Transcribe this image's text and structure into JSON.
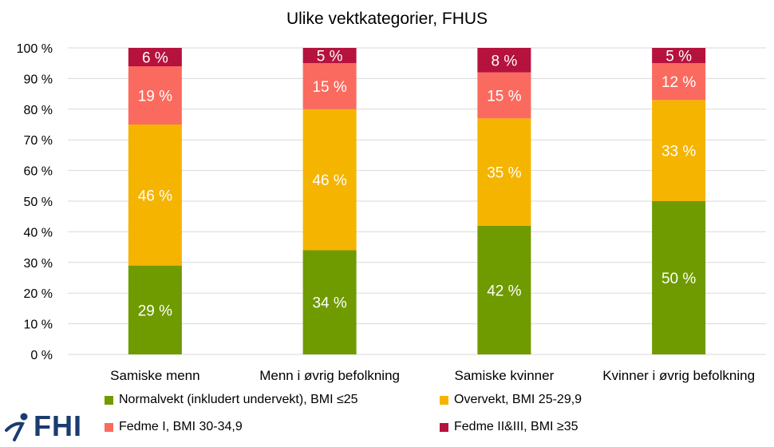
{
  "chart_data": {
    "type": "bar",
    "stacked": true,
    "title": "Ulike vektkategorier, FHUS",
    "categories": [
      "Samiske menn",
      "Menn i øvrig befolkning",
      "Samiske kvinner",
      "Kvinner i øvrig befolkning"
    ],
    "series": [
      {
        "name": "Normalvekt (inkludert undervekt), BMI ≤25",
        "color": "#6f9a00",
        "values": [
          29,
          34,
          42,
          50
        ],
        "labels": [
          "29 %",
          "34 %",
          "42 %",
          "50 %"
        ]
      },
      {
        "name": "Overvekt, BMI 25-29,9",
        "color": "#f5b400",
        "values": [
          46,
          46,
          35,
          33
        ],
        "labels": [
          "46 %",
          "46 %",
          "35 %",
          "33 %"
        ]
      },
      {
        "name": "Fedme I, BMI 30-34,9",
        "color": "#fb6a5e",
        "values": [
          19,
          15,
          15,
          12
        ],
        "labels": [
          "19 %",
          "15 %",
          "15 %",
          "12 %"
        ]
      },
      {
        "name": "Fedme II&III, BMI ≥35",
        "color": "#b5123e",
        "values": [
          6,
          5,
          8,
          5
        ],
        "labels": [
          "6 %",
          "5 %",
          "8 %",
          "5 %"
        ]
      }
    ],
    "ylim": [
      0,
      100
    ],
    "yticks": [
      "0 %",
      "10 %",
      "20 %",
      "30 %",
      "40 %",
      "50 %",
      "60 %",
      "70 %",
      "80 %",
      "90 %",
      "100 %"
    ],
    "grid": true,
    "legend_position": "bottom"
  },
  "logo": {
    "text": "FHI"
  }
}
